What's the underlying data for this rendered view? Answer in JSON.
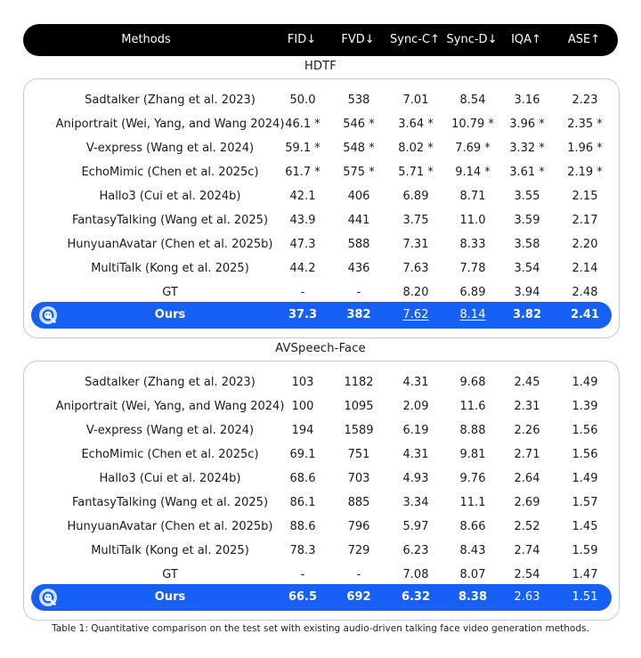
{
  "header": {
    "methods": "Methods",
    "fid": "FID↓",
    "fvd": "FVD↓",
    "sync_c": "Sync-C↑",
    "sync_d": "Sync-D↓",
    "iqa": "IQA↑",
    "ase": "ASE↑"
  },
  "sections": [
    {
      "title": "HDTF",
      "rows": [
        {
          "method": "Sadtalker (Zhang et al. 2023)",
          "fid": "50.0",
          "fvd": "538",
          "sync_c": "7.01",
          "sync_d": "8.54",
          "iqa": "3.16",
          "ase": "2.23"
        },
        {
          "method": "Aniportrait (Wei, Yang, and Wang 2024)",
          "fid": "46.1 *",
          "fvd": "546 *",
          "sync_c": "3.64 *",
          "sync_d": "10.79 *",
          "iqa": "3.96 *",
          "ase": "2.35 *"
        },
        {
          "method": "V-express (Wang et al. 2024)",
          "fid": "59.1 *",
          "fvd": "548 *",
          "sync_c": "8.02 *",
          "sync_d": "7.69 *",
          "iqa": "3.32 *",
          "ase": "1.96 *"
        },
        {
          "method": "EchoMimic (Chen et al. 2025c)",
          "fid": "61.7 *",
          "fvd": "575 *",
          "sync_c": "5.71 *",
          "sync_d": "9.14 *",
          "iqa": "3.61 *",
          "ase": "2.19 *"
        },
        {
          "method": "Hallo3 (Cui et al. 2024b)",
          "fid": "42.1",
          "fvd": "406",
          "sync_c": "6.89",
          "sync_d": "8.71",
          "iqa": "3.55",
          "ase": "2.15"
        },
        {
          "method": "FantasyTalking (Wang et al. 2025)",
          "fid": "43.9",
          "fvd": "441",
          "sync_c": "3.75",
          "sync_d": "11.0",
          "iqa": "3.59",
          "ase": "2.17"
        },
        {
          "method": "HunyuanAvatar (Chen et al. 2025b)",
          "fid": "47.3",
          "fvd": "588",
          "sync_c": "7.31",
          "sync_d": "8.33",
          "iqa": "3.58",
          "ase": "2.20"
        },
        {
          "method": "MultiTalk (Kong et al. 2025)",
          "fid": "44.2",
          "fvd": "436",
          "sync_c": "7.63",
          "sync_d": "7.78",
          "iqa": "3.54",
          "ase": "2.14"
        },
        {
          "method": "GT",
          "fid": "-",
          "fvd": "-",
          "sync_c": "8.20",
          "sync_d": "6.89",
          "iqa": "3.94",
          "ase": "2.48"
        }
      ],
      "ours": {
        "method": "Ours",
        "fid": "37.3",
        "fvd": "382",
        "sync_c": "7.62",
        "sync_d": "8.14",
        "iqa": "3.82",
        "ase": "2.41"
      }
    },
    {
      "title": "AVSpeech-Face",
      "rows": [
        {
          "method": "Sadtalker (Zhang et al. 2023)",
          "fid": "103",
          "fvd": "1182",
          "sync_c": "4.31",
          "sync_d": "9.68",
          "iqa": "2.45",
          "ase": "1.49"
        },
        {
          "method": "Aniportrait (Wei, Yang, and Wang 2024)",
          "fid": "100",
          "fvd": "1095",
          "sync_c": "2.09",
          "sync_d": "11.6",
          "iqa": "2.31",
          "ase": "1.39"
        },
        {
          "method": "V-express (Wang et al. 2024)",
          "fid": "194",
          "fvd": "1589",
          "sync_c": "6.19",
          "sync_d": "8.88",
          "iqa": "2.26",
          "ase": "1.56"
        },
        {
          "method": "EchoMimic (Chen et al. 2025c)",
          "fid": "69.1",
          "fvd": "751",
          "sync_c": "4.31",
          "sync_d": "9.81",
          "iqa": "2.71",
          "ase": "1.56"
        },
        {
          "method": "Hallo3 (Cui et al. 2024b)",
          "fid": "68.6",
          "fvd": "703",
          "sync_c": "4.93",
          "sync_d": "9.76",
          "iqa": "2.64",
          "ase": "1.49"
        },
        {
          "method": "FantasyTalking (Wang et al. 2025)",
          "fid": "86.1",
          "fvd": "885",
          "sync_c": "3.34",
          "sync_d": "11.1",
          "iqa": "2.69",
          "ase": "1.57"
        },
        {
          "method": "HunyuanAvatar (Chen et al. 2025b)",
          "fid": "88.6",
          "fvd": "796",
          "sync_c": "5.97",
          "sync_d": "8.66",
          "iqa": "2.52",
          "ase": "1.45"
        },
        {
          "method": "MultiTalk (Kong et al. 2025)",
          "fid": "78.3",
          "fvd": "729",
          "sync_c": "6.23",
          "sync_d": "8.43",
          "iqa": "2.74",
          "ase": "1.59"
        },
        {
          "method": "GT",
          "fid": "-",
          "fvd": "-",
          "sync_c": "7.08",
          "sync_d": "8.07",
          "iqa": "2.54",
          "ase": "1.47"
        }
      ],
      "ours": {
        "method": "Ours",
        "fid": "66.5",
        "fvd": "692",
        "sync_c": "6.32",
        "sync_d": "8.38",
        "iqa": "2.63",
        "ase": "1.51"
      }
    }
  ],
  "caption": "Table 1: Quantitative comparison on the test set with existing audio-driven talking face video generation methods.",
  "colors": {
    "header_bg": "#000000",
    "ours_bg": "#1660f5",
    "panel_border": "#c9c9c9"
  }
}
